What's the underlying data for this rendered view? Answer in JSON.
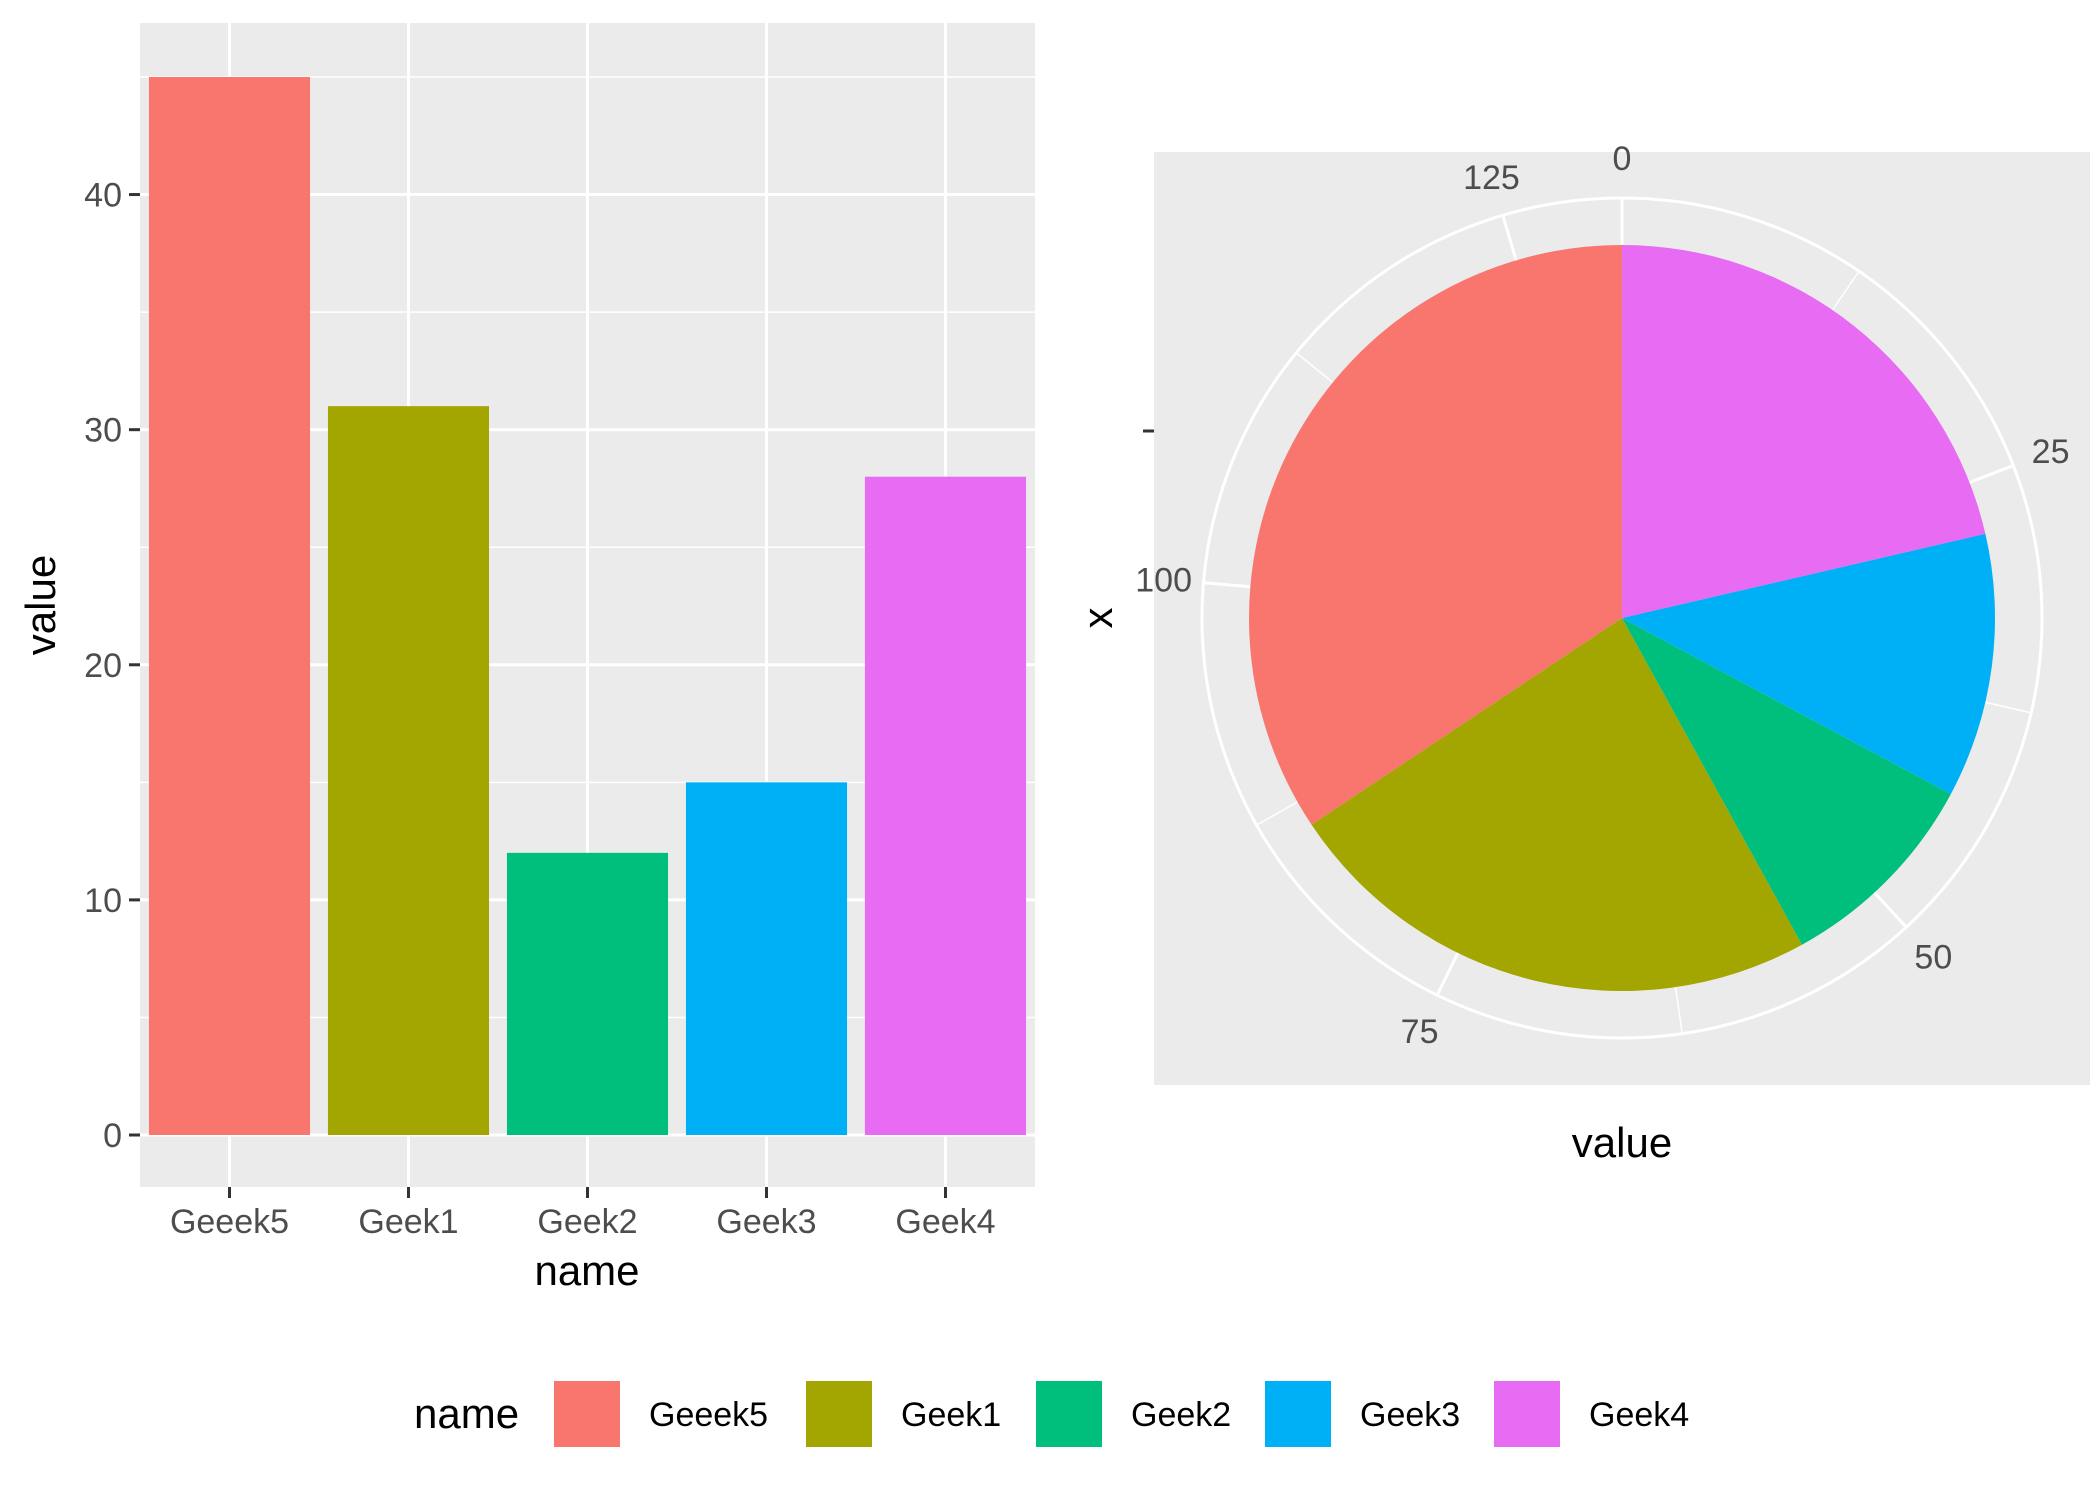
{
  "chart_data": [
    {
      "type": "bar",
      "categories": [
        "Geeek5",
        "Geek1",
        "Geek2",
        "Geek3",
        "Geek4"
      ],
      "values": [
        45,
        31,
        12,
        15,
        28
      ],
      "colors": [
        "#F8766D",
        "#A3A500",
        "#00BF7D",
        "#00B0F6",
        "#E76BF3"
      ],
      "xlabel": "name",
      "ylabel": "value",
      "ylim": [
        0,
        47.2
      ],
      "yticks": [
        0,
        10,
        20,
        30,
        40
      ],
      "ytick_labels": [
        "0",
        "10",
        "20",
        "30",
        "40"
      ],
      "grid": true
    },
    {
      "type": "pie",
      "categories": [
        "Geeek5",
        "Geek1",
        "Geek2",
        "Geek3",
        "Geek4"
      ],
      "values": [
        45,
        31,
        12,
        15,
        28
      ],
      "colors": [
        "#F8766D",
        "#A3A500",
        "#00BF7D",
        "#00B0F6",
        "#E76BF3"
      ],
      "total": 131,
      "xlabel": "value",
      "ylabel": "x",
      "angle_ticks": [
        0,
        25,
        50,
        75,
        100,
        125
      ],
      "angle_tick_labels": [
        "0",
        "25",
        "50",
        "75",
        "100",
        "125"
      ],
      "grid": true
    }
  ],
  "legend": {
    "title": "name",
    "position": "bottom",
    "items": [
      {
        "label": "Geeek5",
        "color": "#F8766D"
      },
      {
        "label": "Geek1",
        "color": "#A3A500"
      },
      {
        "label": "Geek2",
        "color": "#00BF7D"
      },
      {
        "label": "Geek3",
        "color": "#00B0F6"
      },
      {
        "label": "Geek4",
        "color": "#E76BF3"
      }
    ]
  }
}
